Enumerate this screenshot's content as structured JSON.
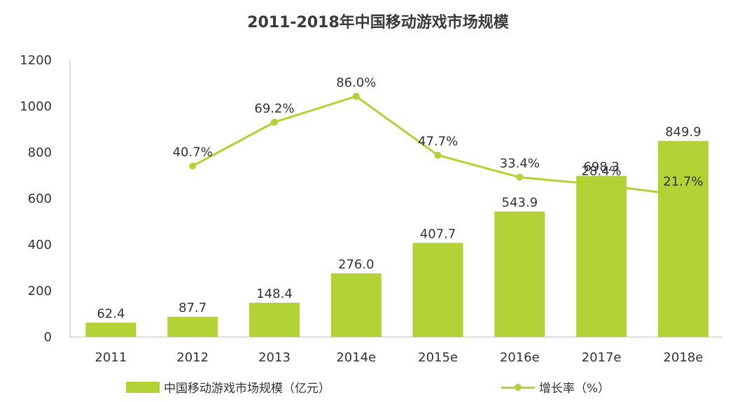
{
  "chart_data": {
    "type": "bar+line",
    "title": "2011-2018年中国移动游戏市场规模",
    "categories": [
      "2011",
      "2012",
      "2013",
      "2014e",
      "2015e",
      "2016e",
      "2017e",
      "2018e"
    ],
    "series": [
      {
        "name": "中国移动游戏市场规模（亿元）",
        "type": "bar",
        "values": [
          62.4,
          87.7,
          148.4,
          276.0,
          407.7,
          543.9,
          698.3,
          849.9
        ],
        "labels": [
          "62.4",
          "87.7",
          "148.4",
          "276.0",
          "407.7",
          "543.9",
          "698.3",
          "849.9"
        ]
      },
      {
        "name": "增长率（%）",
        "type": "line",
        "values": [
          null,
          40.7,
          69.2,
          86.0,
          47.7,
          33.4,
          28.4,
          21.7
        ],
        "labels": [
          "",
          "40.7%",
          "69.2%",
          "86.0%",
          "47.7%",
          "33.4%",
          "28.4%",
          "21.7%"
        ]
      }
    ],
    "ylim": [
      0,
      1200
    ],
    "yticks": [
      "0",
      "200",
      "400",
      "600",
      "800",
      "1000",
      "1200"
    ],
    "xlabel": "",
    "ylabel": "",
    "grid": false,
    "legend_position": "bottom",
    "colors": {
      "bar": "#b2d235",
      "line": "#b2d235",
      "axis": "#bfbfbf",
      "text": "#333333"
    }
  }
}
